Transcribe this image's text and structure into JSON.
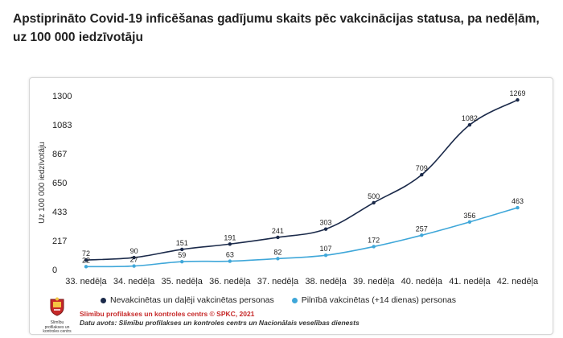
{
  "headline": "Apstiprināto Covid-19 inficēšanas gadījumu skaits pēc vakcinācijas statusa, pa nedēļām, uz 100 000 iedzīvotāju",
  "chart_data": {
    "type": "line",
    "title": "",
    "xlabel": "",
    "ylabel": "Uz 100 000 iedzīvotāju",
    "categories": [
      "33. nedēļa",
      "34. nedēļa",
      "35. nedēļa",
      "36. nedēļa",
      "37. nedēļa",
      "38. nedēļa",
      "39. nedēļa",
      "40. nedēļa",
      "41. nedēļa",
      "42. nedēļa"
    ],
    "yticks": [
      "0",
      "217",
      "433",
      "650",
      "867",
      "1083",
      "1300"
    ],
    "ylim": [
      0,
      1300
    ],
    "grid": false,
    "legend_position": "bottom",
    "series": [
      {
        "name": "Nevakcinētas un daļēji vakcinētas personas",
        "color": "#1b2a4a",
        "values": [
          72,
          90,
          151,
          191,
          241,
          303,
          500,
          709,
          1082,
          1269
        ],
        "labels": [
          "72",
          "90",
          "151",
          "191",
          "241",
          "303",
          "500",
          "709",
          "1082",
          "1269"
        ]
      },
      {
        "name": "Pilnībā vakcinētas (+14 dienas) personas",
        "color": "#3fa7d9",
        "values": [
          22,
          27,
          59,
          63,
          82,
          107,
          172,
          257,
          356,
          463
        ],
        "labels": [
          "22",
          "27",
          "59",
          "63",
          "82",
          "107",
          "172",
          "257",
          "356",
          "463"
        ]
      }
    ]
  },
  "footer": {
    "credit": "Slimību profilakses un kontroles centrs © SPKC, 2021",
    "source": "Datu avots: Slimību profilakses un kontroles centrs un Nacionālais veselības dienests",
    "logo_caption": "Slimību profilakses un kontroles centrs",
    "logo_icon": "coat-of-arms-icon"
  }
}
